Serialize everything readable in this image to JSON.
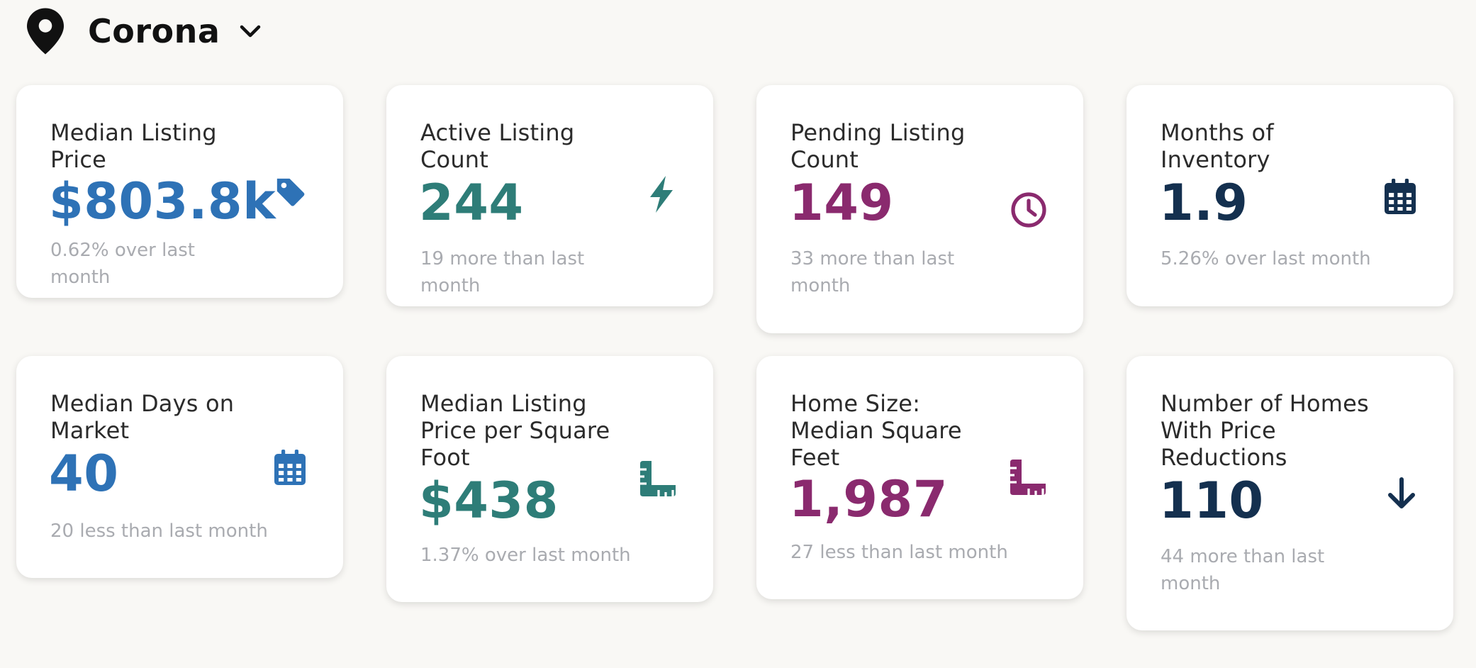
{
  "location": {
    "name": "Corona",
    "pin_icon": "map-pin-icon",
    "dropdown_icon": "chevron-down-icon"
  },
  "colors": {
    "blue": "#2e72b6",
    "teal": "#2e7d78",
    "plum": "#8a2a6e",
    "navy": "#14304f",
    "muted_text": "#a9abb0"
  },
  "cards": [
    {
      "title": "Median Listing Price",
      "value": "$803.8k",
      "change": "0.62% over last month",
      "icon": "price-tag-icon",
      "color": "#2e72b6"
    },
    {
      "title": "Active Listing Count",
      "value": "244",
      "change": "19 more than last month",
      "icon": "lightning-bolt-icon",
      "color": "#2e7d78"
    },
    {
      "title": "Pending Listing Count",
      "value": "149",
      "change": "33 more than last month",
      "icon": "clock-icon",
      "color": "#8a2a6e"
    },
    {
      "title": "Months of Inventory",
      "value": "1.9",
      "change": "5.26% over last month",
      "icon": "calendar-icon",
      "color": "#14304f"
    },
    {
      "title": "Median Days on Market",
      "value": "40",
      "change": "20 less than last month",
      "icon": "calendar-icon",
      "color": "#2e72b6"
    },
    {
      "title": "Median Listing Price per Square Foot",
      "value": "$438",
      "change": "1.37% over last month",
      "icon": "ruler-icon",
      "color": "#2e7d78"
    },
    {
      "title": "Home Size: Median Square Feet",
      "value": "1,987",
      "change": "27 less than last month",
      "icon": "ruler-icon",
      "color": "#8a2a6e"
    },
    {
      "title": "Number of Homes With Price Reductions",
      "value": "110",
      "change": "44 more than last month",
      "icon": "arrow-down-icon",
      "color": "#14304f"
    }
  ]
}
